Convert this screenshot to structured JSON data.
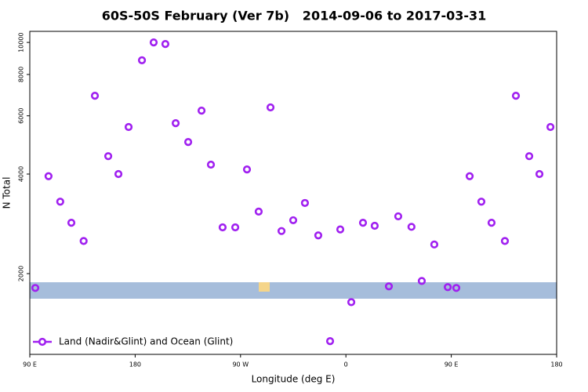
{
  "chart_data": {
    "type": "scatter",
    "title": "60S-50S February (Ver 7b)   2014-09-06 to 2017-03-31",
    "x_label": "Longitude (deg E)",
    "y_label": "N Total",
    "log_y": true,
    "xlim": [
      90,
      540
    ],
    "ylim": [
      1140,
      10800
    ],
    "xticks": [
      {
        "value": 90,
        "label": "90 E"
      },
      180,
      {
        "value": 270,
        "label": "90 W"
      },
      {
        "value": 360,
        "label": "0"
      },
      {
        "value": 450,
        "label": "90 E"
      },
      {
        "value": 540,
        "label": "180"
      }
    ],
    "yticks": [
      2000,
      4000,
      6000,
      8000,
      10000
    ],
    "legend": "bottom-left",
    "series": [
      {
        "name": "Land (Nadir&Glint) and Ocean (Glint)",
        "color": "#a020f0",
        "x": [
          94.7,
          106,
          116,
          125.5,
          136,
          145.6,
          157,
          165.7,
          174.4,
          185.8,
          195.8,
          205.8,
          214.6,
          225.3,
          236.7,
          244.7,
          254.7,
          265.5,
          275.5,
          285.5,
          295.6,
          305,
          315,
          325,
          336.4,
          346.5,
          355.2,
          364.6,
          374.6,
          384.6,
          396.7,
          404.7,
          416,
          424.8,
          435.5,
          447,
          454.3,
          465.7,
          475.7,
          484.4,
          495.8,
          505.2,
          516.6,
          525.3,
          534.7
        ],
        "values": [
          1810,
          3940,
          3300,
          2850,
          2510,
          6900,
          4530,
          4000,
          5550,
          8830,
          10000,
          9890,
          5700,
          5000,
          6220,
          4270,
          2760,
          2760,
          4130,
          3080,
          6360,
          2690,
          2900,
          3270,
          2610,
          1250,
          2720,
          1640,
          2850,
          2790,
          1830,
          2980,
          2770,
          1900,
          2450,
          1820,
          1810,
          3940,
          3300,
          2850,
          2510,
          6900,
          4530,
          4000,
          5550
        ]
      }
    ]
  }
}
